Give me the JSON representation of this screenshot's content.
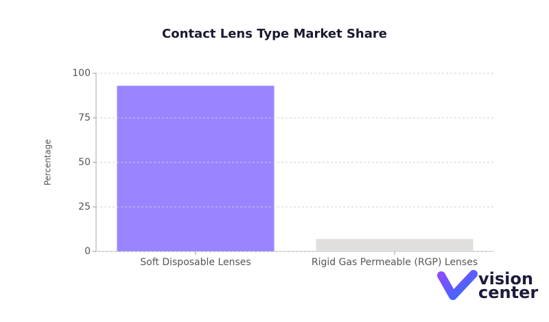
{
  "chart_data": {
    "type": "bar",
    "title": "Contact Lens Type Market Share",
    "y_label": "Percentage",
    "categories": [
      "Soft Disposable Lenses",
      "Rigid Gas Permeable (RGP) Lenses"
    ],
    "values": [
      93,
      7
    ],
    "colors": [
      "#9b85ff",
      "#e0dfdd"
    ],
    "ylim": [
      0,
      100
    ],
    "yticks": [
      0,
      25,
      50,
      75,
      100
    ],
    "grid": true
  },
  "logo": {
    "line1": "vision",
    "line2": "center"
  }
}
